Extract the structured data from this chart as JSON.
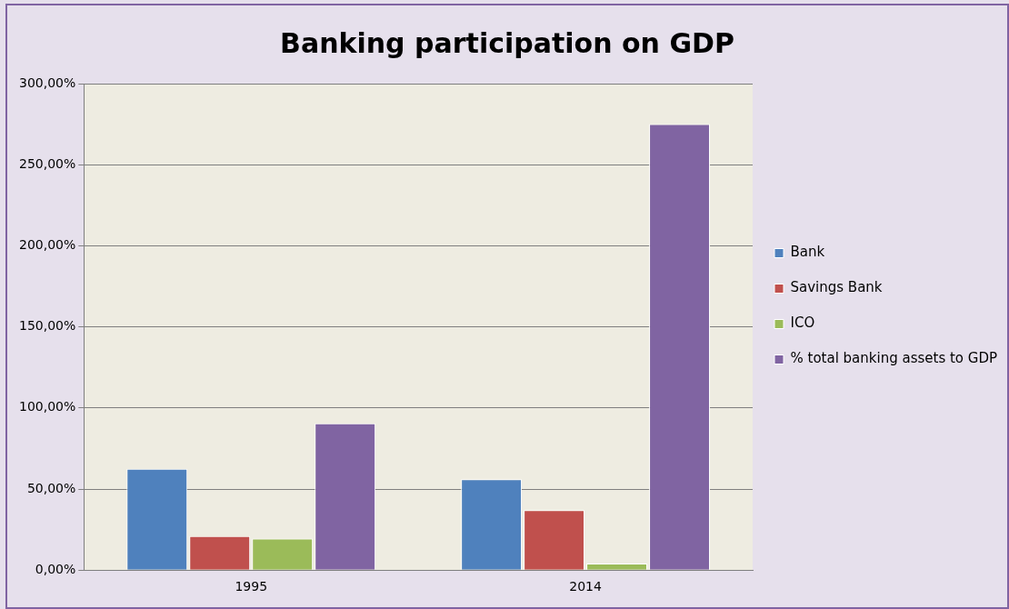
{
  "chart_data": {
    "type": "bar",
    "title": "Banking participation on GDP",
    "categories": [
      "1995",
      "2014"
    ],
    "series": [
      {
        "name": "Bank",
        "color": "#4f81bd",
        "values": [
          62.5,
          56
        ]
      },
      {
        "name": "Savings Bank",
        "color": "#c0504d",
        "values": [
          21,
          37
        ]
      },
      {
        "name": "ICO",
        "color": "#9bbb59",
        "values": [
          19.5,
          4
        ]
      },
      {
        "name": "% total banking assets to GDP",
        "color": "#8064a2",
        "values": [
          90.5,
          275
        ]
      }
    ],
    "ylim": [
      0,
      300
    ],
    "yticks": [
      {
        "value": 0,
        "label": "0,00%"
      },
      {
        "value": 50,
        "label": "50,00%"
      },
      {
        "value": 100,
        "label": "100,00%"
      },
      {
        "value": 150,
        "label": "150,00%"
      },
      {
        "value": 200,
        "label": "200,00%"
      },
      {
        "value": 250,
        "label": "250,00%"
      },
      {
        "value": 300,
        "label": "300,00%"
      }
    ],
    "grid": "y",
    "legend": "right"
  }
}
